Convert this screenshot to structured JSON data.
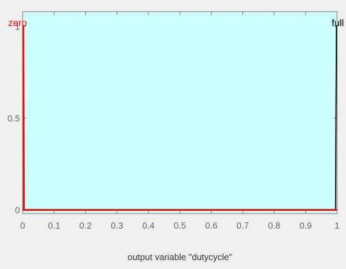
{
  "chart_data": {
    "type": "line",
    "title": "",
    "xlabel": "output variable \"dutycycle\"",
    "ylabel": "",
    "xlim": [
      0,
      1
    ],
    "ylim": [
      -0.02,
      1.08
    ],
    "x_ticks": [
      0,
      0.1,
      0.2,
      0.3,
      0.4,
      0.5,
      0.6,
      0.7,
      0.8,
      0.9,
      1
    ],
    "x_tick_labels": [
      "0",
      "0.1",
      "0.2",
      "0.3",
      "0.4",
      "0.5",
      "0.6",
      "0.7",
      "0.8",
      "0.9",
      "1"
    ],
    "y_ticks": [
      0,
      0.5,
      1
    ],
    "y_tick_labels": [
      "0",
      "0.5",
      "1"
    ],
    "background_color": "#ccffff",
    "grid": false,
    "series": [
      {
        "name": "zero",
        "color": "#ff0000",
        "points": [
          [
            0,
            1
          ],
          [
            0.002,
            1
          ],
          [
            0.004,
            0
          ],
          [
            1,
            0
          ]
        ]
      },
      {
        "name": "full",
        "color": "#000000",
        "points": [
          [
            0,
            0
          ],
          [
            0.995,
            0
          ],
          [
            0.998,
            1
          ],
          [
            1,
            1
          ]
        ]
      }
    ]
  }
}
